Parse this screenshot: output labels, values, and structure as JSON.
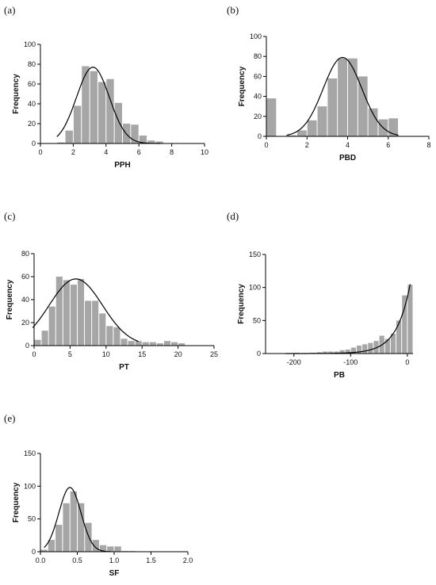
{
  "panel_letters": [
    "(a)",
    "(b)",
    "(c)",
    "(d)",
    "(e)"
  ],
  "colors": {
    "bar": "#a6a6a6",
    "curve": "#000000",
    "axis": "#000000"
  },
  "chart_data": [
    {
      "type": "bar",
      "panel": "(a)",
      "xlabel": "PPH",
      "ylabel": "Frequency",
      "xlim": [
        0,
        10
      ],
      "ylim": [
        0,
        100
      ],
      "xticks": [
        0,
        2,
        4,
        6,
        8,
        10
      ],
      "yticks": [
        0,
        20,
        40,
        60,
        80,
        100
      ],
      "bin_width": 0.5,
      "bin_starts": [
        1.0,
        1.5,
        2.0,
        2.5,
        3.0,
        3.5,
        4.0,
        4.5,
        5.0,
        5.5,
        6.0,
        6.5,
        7.0
      ],
      "values": [
        1,
        13,
        38,
        78,
        73,
        62,
        65,
        41,
        20,
        19,
        8,
        3,
        2
      ],
      "fit_curve": {
        "type": "normal",
        "mean": 3.2,
        "sd": 1.0,
        "peak": 77,
        "range": [
          1.0,
          7.3
        ]
      }
    },
    {
      "type": "bar",
      "panel": "(b)",
      "xlabel": "PBD",
      "ylabel": "Frequency",
      "xlim": [
        0,
        8
      ],
      "ylim": [
        0,
        100
      ],
      "xticks": [
        0,
        2,
        4,
        6,
        8
      ],
      "yticks": [
        0,
        20,
        40,
        60,
        80,
        100
      ],
      "bin_width": 0.5,
      "bin_starts": [
        0.0,
        1.0,
        1.5,
        2.0,
        2.5,
        3.0,
        3.5,
        4.0,
        4.5,
        5.0,
        5.5,
        6.0
      ],
      "values": [
        38,
        1,
        6,
        16,
        30,
        58,
        78,
        78,
        60,
        28,
        17,
        18
      ],
      "fit_curve": {
        "type": "normal",
        "mean": 3.75,
        "sd": 0.95,
        "peak": 79,
        "range": [
          1.0,
          6.5
        ]
      }
    },
    {
      "type": "bar",
      "panel": "(c)",
      "xlabel": "PT",
      "ylabel": "Frequency",
      "xlim": [
        0,
        25
      ],
      "ylim": [
        0,
        80
      ],
      "xticks": [
        0,
        5,
        10,
        15,
        20,
        25
      ],
      "yticks": [
        0,
        20,
        40,
        60,
        80
      ],
      "bin_width": 1,
      "bin_starts": [
        0,
        1,
        2,
        3,
        4,
        5,
        6,
        7,
        8,
        9,
        10,
        11,
        12,
        13,
        14,
        15,
        16,
        17,
        18,
        19,
        20
      ],
      "values": [
        5,
        13,
        34,
        60,
        57,
        53,
        58,
        39,
        39,
        28,
        17,
        16,
        6,
        4,
        4,
        3,
        3,
        2,
        4,
        3,
        2
      ],
      "fit_curve": {
        "type": "normal",
        "mean": 5.8,
        "sd": 3.7,
        "peak": 58,
        "range": [
          -0.2,
          14.5
        ]
      }
    },
    {
      "type": "bar",
      "panel": "(d)",
      "xlabel": "PB",
      "ylabel": "Frequency",
      "xlim": [
        -250,
        10
      ],
      "ylim": [
        0,
        150
      ],
      "xticks": [
        -200,
        -100,
        0
      ],
      "yticks": [
        0,
        50,
        100,
        150
      ],
      "bin_width": 10,
      "bin_starts": [
        -210,
        -200,
        -190,
        -180,
        -170,
        -160,
        -150,
        -140,
        -130,
        -120,
        -110,
        -100,
        -90,
        -80,
        -70,
        -60,
        -50,
        -40,
        -30,
        -20,
        -10,
        0
      ],
      "values": [
        0,
        1,
        0,
        0,
        1,
        2,
        3,
        3,
        3,
        5,
        6,
        9,
        12,
        14,
        16,
        19,
        27,
        22,
        30,
        50,
        88,
        104
      ],
      "fit_curve": {
        "type": "exponential",
        "peak": 105,
        "at": 5,
        "decay": 24,
        "range": [
          -215,
          5
        ]
      }
    },
    {
      "type": "bar",
      "panel": "(e)",
      "xlabel": "SF",
      "ylabel": "Frequency",
      "xlim": [
        0,
        2.0
      ],
      "ylim": [
        0,
        150
      ],
      "xticks": [
        0.0,
        0.5,
        1.0,
        1.5,
        2.0
      ],
      "yticks": [
        0,
        50,
        100,
        150
      ],
      "xtick_labels": [
        "0.0",
        "0.5",
        "1.0",
        "1.5",
        "2.0"
      ],
      "bin_width": 0.1,
      "bin_starts": [
        0.0,
        0.1,
        0.2,
        0.3,
        0.4,
        0.5,
        0.6,
        0.7,
        0.8,
        0.9,
        1.0,
        1.1,
        1.2
      ],
      "values": [
        3,
        18,
        41,
        74,
        92,
        74,
        44,
        18,
        10,
        8,
        8,
        1,
        1
      ],
      "fit_curve": {
        "type": "normal",
        "mean": 0.4,
        "sd": 0.15,
        "peak": 98,
        "range": [
          0.05,
          0.95
        ]
      }
    }
  ]
}
